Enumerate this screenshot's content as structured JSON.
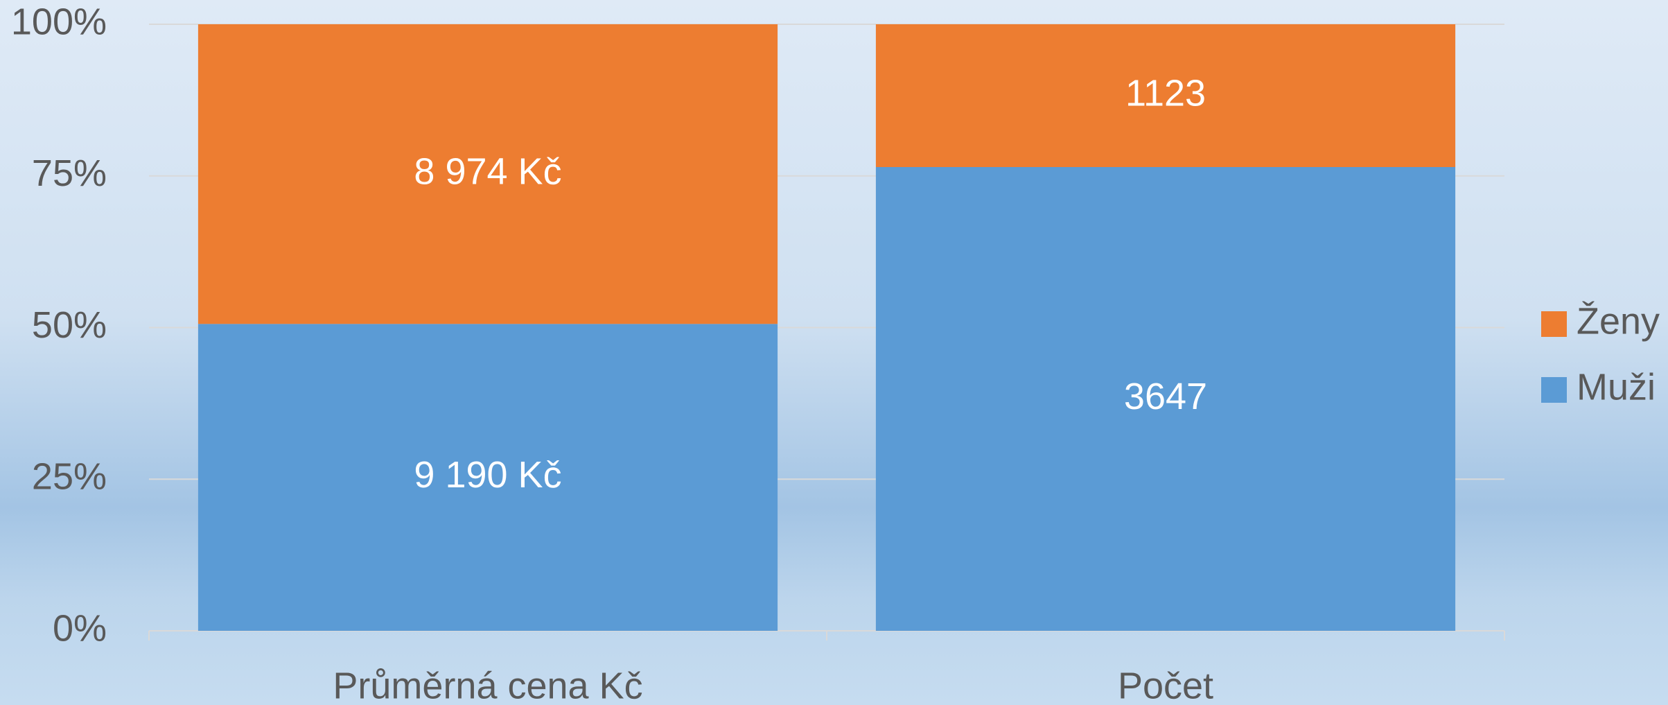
{
  "chart_data": {
    "type": "bar",
    "stack": "percent",
    "categories": [
      "Průměrná cena Kč",
      "Počet"
    ],
    "series": [
      {
        "name": "Muži",
        "color": "#5b9bd5",
        "values": [
          9190,
          3647
        ],
        "value_labels": [
          "9 190 Kč",
          "3647"
        ]
      },
      {
        "name": "Ženy",
        "color": "#ed7d31",
        "values": [
          8974,
          1123
        ],
        "value_labels": [
          "8 974 Kč",
          "1123"
        ]
      }
    ],
    "ylim": [
      0,
      100
    ],
    "yticks": [
      {
        "value": 0,
        "label": "0%"
      },
      {
        "value": 25,
        "label": "25%"
      },
      {
        "value": 50,
        "label": "50%"
      },
      {
        "value": 75,
        "label": "75%"
      },
      {
        "value": 100,
        "label": "100%"
      }
    ],
    "grid": true,
    "legend": "right"
  }
}
